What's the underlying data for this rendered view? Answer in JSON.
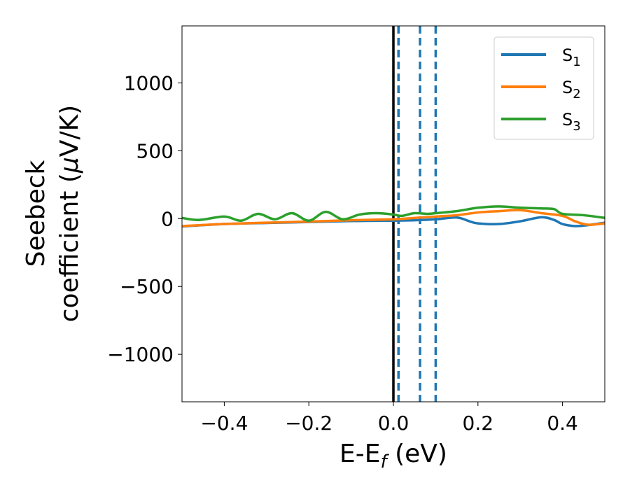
{
  "chart_data": {
    "type": "line",
    "xlabel": "E-E",
    "xlabel_sub": "f",
    "xlabel_unit": " (eV)",
    "ylabel_line1": "Seebeck",
    "ylabel_line2": "coefficient  (",
    "ylabel_mu": "μ",
    "ylabel_unit": "V/K)",
    "xlim": [
      -0.5,
      0.5
    ],
    "ylim": [
      -1350,
      1420
    ],
    "xticks": [
      -0.4,
      -0.2,
      0.0,
      0.2,
      0.4
    ],
    "xtick_labels": [
      "−0.4",
      "−0.2",
      "0.0",
      "0.2",
      "0.4"
    ],
    "yticks": [
      -1000,
      -500,
      0,
      500,
      1000
    ],
    "ytick_labels": [
      "−1000",
      "−500",
      "0",
      "500",
      "1000"
    ],
    "grid": false,
    "legend_position": "top-right",
    "fermi_line": {
      "x": 0.0,
      "color": "#000000",
      "style": "solid"
    },
    "dashed_lines": {
      "x": [
        0.012,
        0.063,
        0.1
      ],
      "color": "#1f77b4",
      "style": "dashed"
    },
    "series": [
      {
        "name": "S",
        "sub": "1",
        "color": "#1f77b4",
        "x": [
          -0.5,
          -0.4,
          -0.3,
          -0.2,
          -0.1,
          0.0,
          0.05,
          0.1,
          0.15,
          0.18,
          0.2,
          0.25,
          0.3,
          0.35,
          0.38,
          0.4,
          0.43,
          0.46,
          0.5
        ],
        "y": [
          -58,
          -40,
          -32,
          -25,
          -18,
          -15,
          -12,
          -5,
          8,
          -20,
          -35,
          -40,
          -20,
          10,
          -10,
          -40,
          -55,
          -48,
          -30
        ]
      },
      {
        "name": "S",
        "sub": "2",
        "color": "#ff7f0e",
        "x": [
          -0.5,
          -0.4,
          -0.3,
          -0.2,
          -0.1,
          0.0,
          0.05,
          0.1,
          0.15,
          0.2,
          0.25,
          0.3,
          0.35,
          0.4,
          0.43,
          0.46,
          0.5
        ],
        "y": [
          -55,
          -40,
          -30,
          -22,
          -12,
          -5,
          5,
          15,
          25,
          45,
          55,
          62,
          40,
          20,
          -20,
          -45,
          -35
        ]
      },
      {
        "name": "S",
        "sub": "3",
        "color": "#2ca02c",
        "x": [
          -0.5,
          -0.46,
          -0.4,
          -0.36,
          -0.32,
          -0.28,
          -0.24,
          -0.2,
          -0.16,
          -0.12,
          -0.08,
          -0.04,
          0.0,
          0.02,
          0.05,
          0.08,
          0.1,
          0.15,
          0.2,
          0.25,
          0.3,
          0.35,
          0.38,
          0.4,
          0.45,
          0.5
        ],
        "y": [
          5,
          -10,
          15,
          -15,
          35,
          -5,
          40,
          -15,
          50,
          -5,
          30,
          40,
          30,
          20,
          40,
          35,
          40,
          55,
          80,
          90,
          80,
          75,
          70,
          35,
          25,
          5
        ]
      }
    ]
  }
}
